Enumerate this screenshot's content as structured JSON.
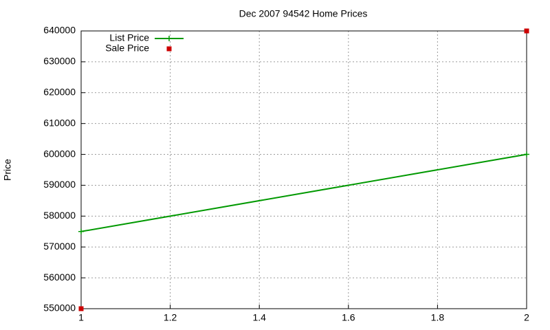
{
  "chart_data": {
    "type": "line",
    "title": "Dec 2007 94542 Home Prices",
    "ylabel": "Price",
    "x": [
      1,
      2
    ],
    "series": [
      {
        "name": "List Price",
        "color": "#009900",
        "style": "linespoints",
        "values": [
          575000,
          600000
        ]
      },
      {
        "name": "Sale Price",
        "color": "#cc0000",
        "style": "points",
        "values": [
          550000,
          640000
        ]
      }
    ],
    "xlim": [
      1,
      2
    ],
    "xticks": [
      1,
      1.2,
      1.4,
      1.6,
      1.8,
      2
    ],
    "ylim": [
      550000,
      640000
    ],
    "yticks": [
      550000,
      560000,
      570000,
      580000,
      590000,
      600000,
      610000,
      620000,
      630000,
      640000
    ],
    "grid": true,
    "legend": "top-left"
  }
}
